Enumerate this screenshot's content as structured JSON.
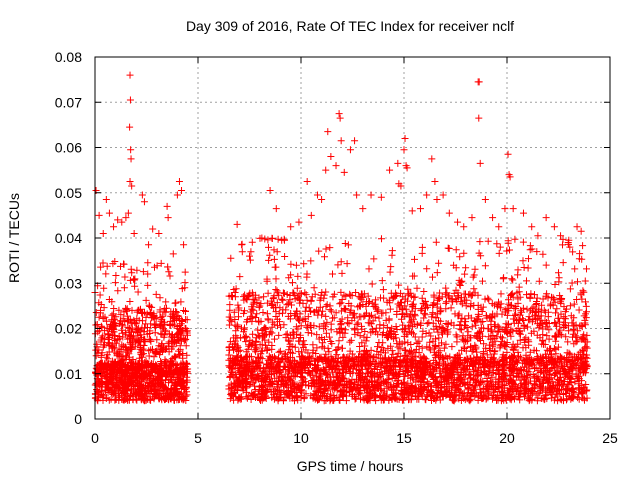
{
  "chart_data": {
    "type": "scatter",
    "title": "Day 309 of 2016, Rate Of TEC Index for receiver nclf",
    "xlabel": "GPS time / hours",
    "ylabel": "ROTI / TECUs",
    "xlim": [
      0,
      25
    ],
    "ylim": [
      0,
      0.08
    ],
    "xticks": [
      0,
      5,
      10,
      15,
      20,
      25
    ],
    "xtick_labels": [
      "0",
      "5",
      "10",
      "15",
      "20",
      "25"
    ],
    "yticks": [
      0,
      0.01,
      0.02,
      0.03,
      0.04,
      0.05,
      0.06,
      0.07,
      0.08
    ],
    "ytick_labels": [
      "0",
      "0.01",
      "0.02",
      "0.03",
      "0.04",
      "0.05",
      "0.06",
      "0.07",
      "0.08"
    ],
    "grid": true,
    "marker": "+",
    "color": "#ff0000",
    "data_gap_hours": [
      4.5,
      6.5
    ],
    "series": [
      {
        "name": "ROTI",
        "points": [
          [
            0.05,
            0.0505
          ],
          [
            0.2,
            0.045
          ],
          [
            0.4,
            0.041
          ],
          [
            0.55,
            0.0485
          ],
          [
            0.7,
            0.0455
          ],
          [
            0.9,
            0.0425
          ],
          [
            1.1,
            0.044
          ],
          [
            1.3,
            0.0435
          ],
          [
            1.5,
            0.0445
          ],
          [
            1.62,
            0.0455
          ],
          [
            1.7,
            0.076
          ],
          [
            1.72,
            0.0705
          ],
          [
            1.68,
            0.0645
          ],
          [
            1.73,
            0.0595
          ],
          [
            1.75,
            0.0575
          ],
          [
            1.7,
            0.0525
          ],
          [
            1.78,
            0.0515
          ],
          [
            1.9,
            0.041
          ],
          [
            2.3,
            0.0495
          ],
          [
            2.4,
            0.048
          ],
          [
            2.6,
            0.0385
          ],
          [
            2.8,
            0.042
          ],
          [
            3.1,
            0.041
          ],
          [
            3.5,
            0.047
          ],
          [
            3.55,
            0.0445
          ],
          [
            3.8,
            0.0365
          ],
          [
            4.0,
            0.0495
          ],
          [
            4.1,
            0.0525
          ],
          [
            4.2,
            0.0505
          ],
          [
            4.3,
            0.0385
          ],
          [
            6.9,
            0.043
          ],
          [
            7.5,
            0.036
          ],
          [
            8.1,
            0.04
          ],
          [
            8.5,
            0.0505
          ],
          [
            8.8,
            0.0465
          ],
          [
            9.2,
            0.0395
          ],
          [
            9.5,
            0.0425
          ],
          [
            9.9,
            0.0435
          ],
          [
            10.3,
            0.0525
          ],
          [
            10.5,
            0.045
          ],
          [
            10.8,
            0.0495
          ],
          [
            11.0,
            0.0485
          ],
          [
            11.2,
            0.055
          ],
          [
            11.3,
            0.0635
          ],
          [
            11.45,
            0.058
          ],
          [
            11.7,
            0.056
          ],
          [
            11.85,
            0.0675
          ],
          [
            11.9,
            0.0665
          ],
          [
            11.95,
            0.0615
          ],
          [
            12.1,
            0.0545
          ],
          [
            12.4,
            0.0595
          ],
          [
            12.6,
            0.0615
          ],
          [
            12.7,
            0.0495
          ],
          [
            13.0,
            0.0465
          ],
          [
            13.4,
            0.0495
          ],
          [
            13.9,
            0.049
          ],
          [
            14.3,
            0.055
          ],
          [
            14.7,
            0.0565
          ],
          [
            14.75,
            0.052
          ],
          [
            14.85,
            0.0515
          ],
          [
            15.0,
            0.0595
          ],
          [
            15.05,
            0.062
          ],
          [
            15.1,
            0.056
          ],
          [
            15.15,
            0.0555
          ],
          [
            15.4,
            0.046
          ],
          [
            15.8,
            0.0465
          ],
          [
            16.1,
            0.0495
          ],
          [
            16.35,
            0.0575
          ],
          [
            16.5,
            0.0525
          ],
          [
            16.6,
            0.0485
          ],
          [
            16.9,
            0.0495
          ],
          [
            17.2,
            0.0455
          ],
          [
            17.6,
            0.0435
          ],
          [
            17.9,
            0.0425
          ],
          [
            18.3,
            0.0445
          ],
          [
            18.6,
            0.0745
          ],
          [
            18.65,
            0.0745
          ],
          [
            18.63,
            0.0665
          ],
          [
            18.7,
            0.0565
          ],
          [
            18.95,
            0.0485
          ],
          [
            19.3,
            0.0445
          ],
          [
            19.6,
            0.0425
          ],
          [
            19.9,
            0.0465
          ],
          [
            20.05,
            0.0585
          ],
          [
            20.1,
            0.054
          ],
          [
            20.15,
            0.0535
          ],
          [
            20.3,
            0.0465
          ],
          [
            20.8,
            0.0455
          ],
          [
            21.2,
            0.0425
          ],
          [
            21.5,
            0.0405
          ],
          [
            21.9,
            0.0445
          ],
          [
            22.3,
            0.0425
          ],
          [
            22.6,
            0.0405
          ],
          [
            23.0,
            0.0395
          ],
          [
            23.4,
            0.0425
          ],
          [
            23.6,
            0.0415
          ],
          [
            23.8,
            0.0305
          ]
        ],
        "bulk": {
          "description": "dense cloud of ROTI samples",
          "segments": [
            {
              "x_range": [
                0.0,
                4.5
              ],
              "count": 1300,
              "y_floor": 0.004,
              "typical": 0.01,
              "upper": 0.035
            },
            {
              "x_range": [
                6.5,
                23.9
              ],
              "count": 3600,
              "y_floor": 0.004,
              "typical": 0.011,
              "upper": 0.04
            }
          ],
          "seed": 309
        }
      }
    ]
  }
}
